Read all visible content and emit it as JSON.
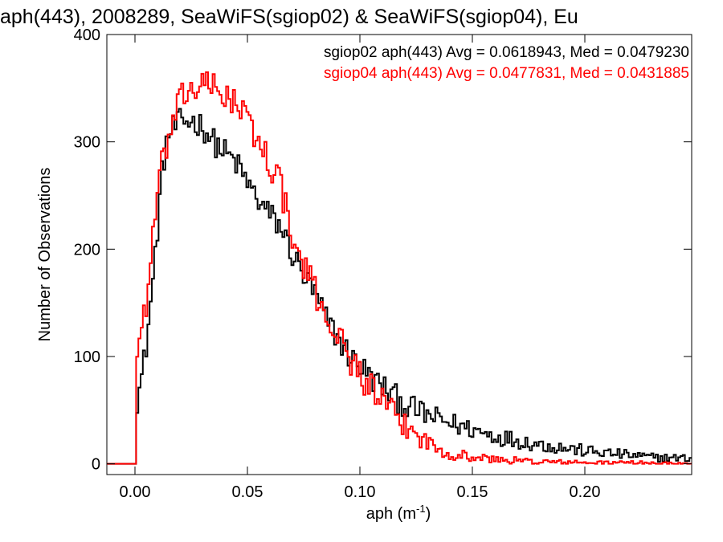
{
  "chart_data": {
    "type": "histogram-step",
    "title": "aph(443), 2008289, SeaWiFS(sgiop02) & SeaWiFS(sgiop04), Eu",
    "xlabel": "aph (m",
    "xlabel_sup": "-1",
    "xlabel_close": ")",
    "ylabel": "Number of Observations",
    "xlim": [
      -0.0125,
      0.2475
    ],
    "ylim": [
      -10,
      400
    ],
    "x_ticks": [
      0.0,
      0.05,
      0.1,
      0.15,
      0.2
    ],
    "x_tick_labels": [
      "0.00",
      "0.05",
      "0.10",
      "0.15",
      "0.20"
    ],
    "y_ticks": [
      0,
      100,
      200,
      300,
      400
    ],
    "y_tick_labels": [
      "0",
      "100",
      "200",
      "300",
      "400"
    ],
    "grid": false,
    "legend_placement": "top-right",
    "bin_width": 0.001,
    "series": [
      {
        "label": "sgiop02 aph(443) Avg = 0.0618943, Med = 0.0479230",
        "color": "#000000",
        "anchors": [
          [
            -0.0125,
            0
          ],
          [
            -0.001,
            0
          ],
          [
            0.0,
            0
          ],
          [
            0.001,
            60
          ],
          [
            0.003,
            80
          ],
          [
            0.005,
            110
          ],
          [
            0.008,
            170
          ],
          [
            0.01,
            220
          ],
          [
            0.012,
            270
          ],
          [
            0.014,
            300
          ],
          [
            0.016,
            310
          ],
          [
            0.02,
            318
          ],
          [
            0.025,
            320
          ],
          [
            0.03,
            315
          ],
          [
            0.035,
            300
          ],
          [
            0.04,
            290
          ],
          [
            0.045,
            280
          ],
          [
            0.05,
            262
          ],
          [
            0.055,
            245
          ],
          [
            0.06,
            232
          ],
          [
            0.065,
            220
          ],
          [
            0.07,
            195
          ],
          [
            0.075,
            175
          ],
          [
            0.08,
            158
          ],
          [
            0.085,
            135
          ],
          [
            0.09,
            118
          ],
          [
            0.095,
            102
          ],
          [
            0.1,
            92
          ],
          [
            0.105,
            80
          ],
          [
            0.11,
            72
          ],
          [
            0.115,
            63
          ],
          [
            0.12,
            55
          ],
          [
            0.13,
            45
          ],
          [
            0.14,
            38
          ],
          [
            0.15,
            32
          ],
          [
            0.16,
            26
          ],
          [
            0.17,
            22
          ],
          [
            0.18,
            18
          ],
          [
            0.19,
            15
          ],
          [
            0.2,
            12
          ],
          [
            0.21,
            10
          ],
          [
            0.22,
            8
          ],
          [
            0.23,
            6
          ],
          [
            0.2475,
            5
          ]
        ],
        "noise": 13
      },
      {
        "label": "sgiop04 aph(443) Avg = 0.0477831, Med = 0.0431885",
        "color": "#ff0000",
        "anchors": [
          [
            -0.0125,
            0
          ],
          [
            -0.001,
            0
          ],
          [
            0.0,
            0
          ],
          [
            0.001,
            100
          ],
          [
            0.003,
            130
          ],
          [
            0.005,
            150
          ],
          [
            0.008,
            210
          ],
          [
            0.01,
            250
          ],
          [
            0.013,
            290
          ],
          [
            0.016,
            310
          ],
          [
            0.019,
            330
          ],
          [
            0.022,
            345
          ],
          [
            0.026,
            350
          ],
          [
            0.03,
            352
          ],
          [
            0.035,
            350
          ],
          [
            0.04,
            345
          ],
          [
            0.045,
            335
          ],
          [
            0.05,
            320
          ],
          [
            0.055,
            300
          ],
          [
            0.06,
            280
          ],
          [
            0.065,
            260
          ],
          [
            0.07,
            205
          ],
          [
            0.075,
            185
          ],
          [
            0.08,
            160
          ],
          [
            0.085,
            140
          ],
          [
            0.09,
            120
          ],
          [
            0.095,
            100
          ],
          [
            0.1,
            85
          ],
          [
            0.105,
            70
          ],
          [
            0.11,
            58
          ],
          [
            0.115,
            45
          ],
          [
            0.12,
            35
          ],
          [
            0.125,
            28
          ],
          [
            0.13,
            20
          ],
          [
            0.135,
            14
          ],
          [
            0.14,
            10
          ],
          [
            0.15,
            6
          ],
          [
            0.16,
            4
          ],
          [
            0.17,
            3
          ],
          [
            0.18,
            2
          ],
          [
            0.2,
            1
          ],
          [
            0.22,
            1
          ],
          [
            0.2475,
            0
          ]
        ],
        "noise": 15
      }
    ]
  }
}
